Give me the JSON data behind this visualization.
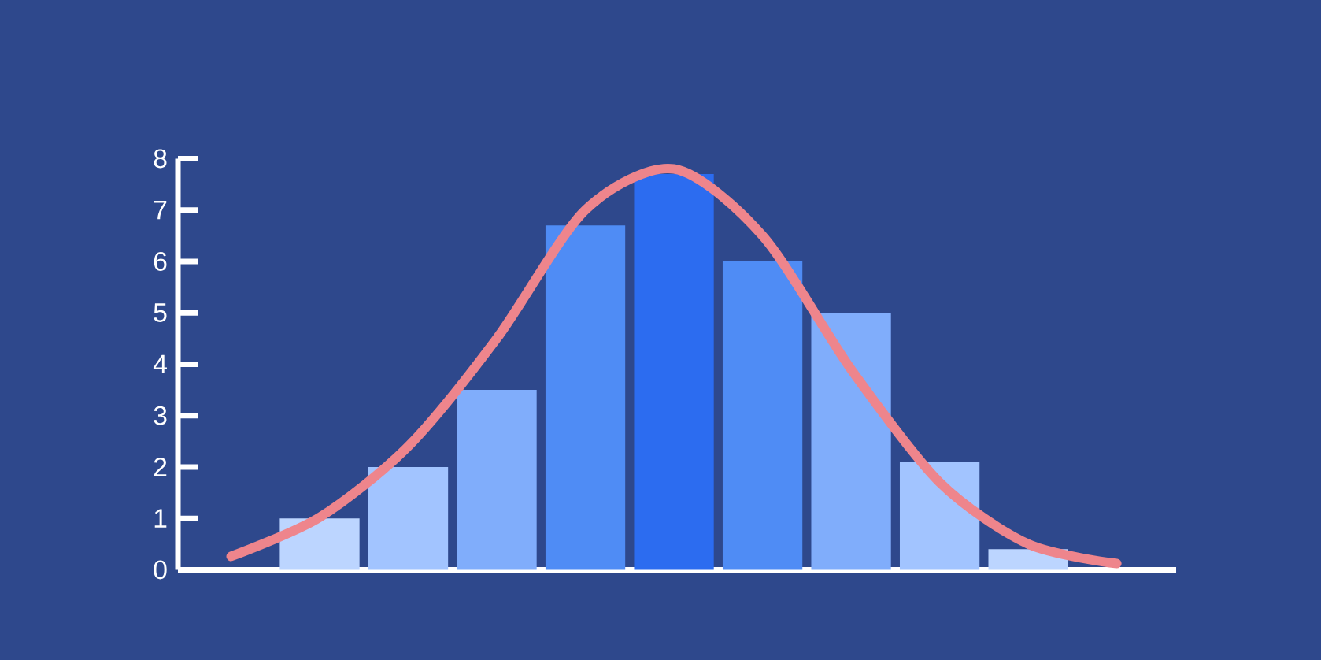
{
  "chart_data": {
    "type": "bar",
    "categories": [
      null,
      null,
      null,
      null,
      null,
      null,
      null,
      null,
      null,
      null,
      null
    ],
    "series": [
      {
        "values": [
          null,
          1,
          2,
          3.5,
          6.7,
          7.7,
          6.0,
          5.0,
          2.1,
          0.4,
          null
        ],
        "colors": [
          "#bcd5ff",
          "#bcd5ff",
          "#a2c4ff",
          "#80adfb",
          "#4f8cf5",
          "#2c6cf0",
          "#4f8cf5",
          "#80adfb",
          "#a2c4ff",
          "#bcd5ff",
          "#bcd5ff"
        ]
      },
      {
        "type": "line",
        "color": "#ee858c",
        "values": [
          0.26,
          1.02,
          2.4,
          4.5,
          7.0,
          7.8,
          6.5,
          3.9,
          1.7,
          0.5,
          0.12
        ]
      }
    ],
    "ylim": [
      0,
      8
    ],
    "yticks": [
      0,
      1,
      2,
      3,
      4,
      5,
      6,
      7,
      8
    ],
    "tick_labels": "y",
    "marker": "none",
    "line_style": "solid"
  }
}
